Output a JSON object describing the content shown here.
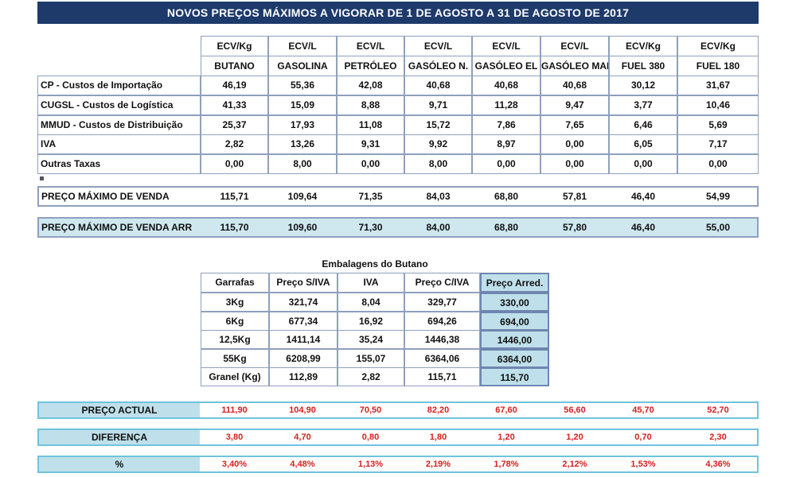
{
  "title": "NOVOS PREÇOS MÁXIMOS A VIGORAR DE 1 DE AGOSTO A 31 DE AGOSTO DE 2017",
  "main_table": {
    "units": [
      "ECV/Kg",
      "ECV/L",
      "ECV/L",
      "ECV/L",
      "ECV/L",
      "ECV/L",
      "ECV/Kg",
      "ECV/Kg"
    ],
    "products": [
      "BUTANO",
      "GASOLINA",
      "PETRÓLEO",
      "GASÓLEO N.",
      "GASÓLEO EL",
      "GASÓLEO MAR",
      "FUEL 380",
      "FUEL 180"
    ],
    "rows": [
      {
        "label": "CP - Custos de Importação",
        "values": [
          "46,19",
          "55,36",
          "42,08",
          "40,68",
          "40,68",
          "40,68",
          "30,12",
          "31,67"
        ]
      },
      {
        "label": "CUGSL - Custos de Logística",
        "values": [
          "41,33",
          "15,09",
          "8,88",
          "9,71",
          "11,28",
          "9,47",
          "3,77",
          "10,46"
        ]
      },
      {
        "label": "MMUD - Custos de Distribuição",
        "values": [
          "25,37",
          "17,93",
          "11,08",
          "15,72",
          "7,86",
          "7,65",
          "6,46",
          "5,69"
        ]
      },
      {
        "label": "IVA",
        "values": [
          "2,82",
          "13,26",
          "9,31",
          "9,92",
          "8,97",
          "0,00",
          "6,05",
          "7,17"
        ]
      },
      {
        "label": "Outras Taxas",
        "values": [
          "0,00",
          "8,00",
          "0,00",
          "8,00",
          "0,00",
          "0,00",
          "0,00",
          "0,00"
        ]
      }
    ],
    "pmv": {
      "label": "PREÇO MÁXIMO DE VENDA",
      "values": [
        "115,71",
        "109,64",
        "71,35",
        "84,03",
        "68,80",
        "57,81",
        "46,40",
        "54,99"
      ]
    },
    "pmv_arr": {
      "label": "PREÇO MÁXIMO DE VENDA ARR",
      "values": [
        "115,70",
        "109,60",
        "71,30",
        "84,00",
        "68,80",
        "57,80",
        "46,40",
        "55,00"
      ]
    }
  },
  "butano": {
    "title": "Embalagens do Butano",
    "headers": [
      "Garrafas",
      "Preço S/IVA",
      "IVA",
      "Preço C/IVA",
      "Preço Arred."
    ],
    "rows": [
      [
        "3Kg",
        "321,74",
        "8,04",
        "329,77",
        "330,00"
      ],
      [
        "6Kg",
        "677,34",
        "16,92",
        "694,26",
        "694,00"
      ],
      [
        "12,5Kg",
        "1411,14",
        "35,24",
        "1446,38",
        "1446,00"
      ],
      [
        "55Kg",
        "6208,99",
        "155,07",
        "6364,06",
        "6364,00"
      ],
      [
        "Granel (Kg)",
        "112,89",
        "2,82",
        "115,71",
        "115,70"
      ]
    ]
  },
  "bottom": [
    {
      "label": "PREÇO ACTUAL",
      "values": [
        "111,90",
        "104,90",
        "70,50",
        "82,20",
        "67,60",
        "56,60",
        "45,70",
        "52,70"
      ]
    },
    {
      "label": "DIFERENÇA",
      "values": [
        "3,80",
        "4,70",
        "0,80",
        "1,80",
        "1,20",
        "1,20",
        "0,70",
        "2,30"
      ]
    },
    {
      "label": "%",
      "values": [
        "3,40%",
        "4,48%",
        "1,13%",
        "2,19%",
        "1,78%",
        "2,12%",
        "1,53%",
        "4,36%"
      ]
    }
  ],
  "colors": {
    "banner": "#1d3a6b",
    "border": "#8fa0bd",
    "light_blue": "#bfe0ea",
    "strip_border": "#6fc3dd",
    "red": "#d61f1f"
  }
}
